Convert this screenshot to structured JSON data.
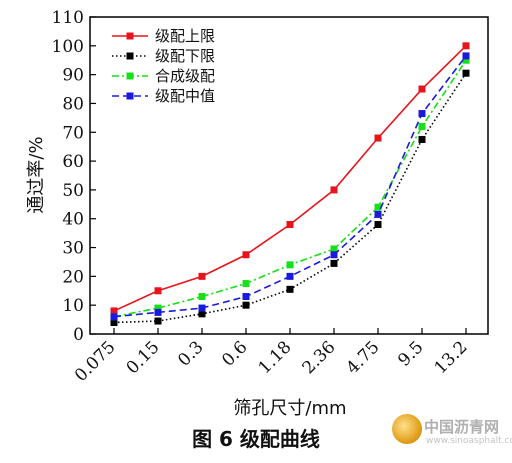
{
  "chart_data": {
    "type": "line",
    "title": "",
    "xlabel": "筛孔尺寸/mm",
    "ylabel": "通过率/%",
    "categories": [
      "0.075",
      "0.15",
      "0.3",
      "0.6",
      "1.18",
      "2.36",
      "4.75",
      "9.5",
      "13.2"
    ],
    "ylim": [
      0,
      110
    ],
    "yticks": [
      0,
      10,
      20,
      30,
      40,
      50,
      60,
      70,
      80,
      90,
      100,
      110
    ],
    "grid": false,
    "legend_position": "top-left",
    "series": [
      {
        "name": "级配上限",
        "color": "#e8141b",
        "dash": "solid",
        "values": [
          8,
          15,
          20,
          27.5,
          38,
          50,
          68,
          85,
          100
        ]
      },
      {
        "name": "级配下限",
        "color": "#000000",
        "dash": "dotted",
        "values": [
          4,
          4.5,
          7,
          10,
          15.5,
          24.5,
          38,
          67.5,
          90.5
        ]
      },
      {
        "name": "合成级配",
        "color": "#16e016",
        "dash": "dashdot",
        "values": [
          6,
          9,
          13,
          17.5,
          24,
          29.5,
          44,
          72,
          95
        ]
      },
      {
        "name": "级配中值",
        "color": "#1a1adf",
        "dash": "dashed",
        "values": [
          6,
          7.5,
          9,
          13,
          20,
          27.5,
          41.5,
          76.5,
          96.5
        ]
      }
    ]
  },
  "caption": "图 6 级配曲线",
  "watermark": {
    "text": "中国沥青网",
    "url": "www.sinoasphalt.com"
  }
}
